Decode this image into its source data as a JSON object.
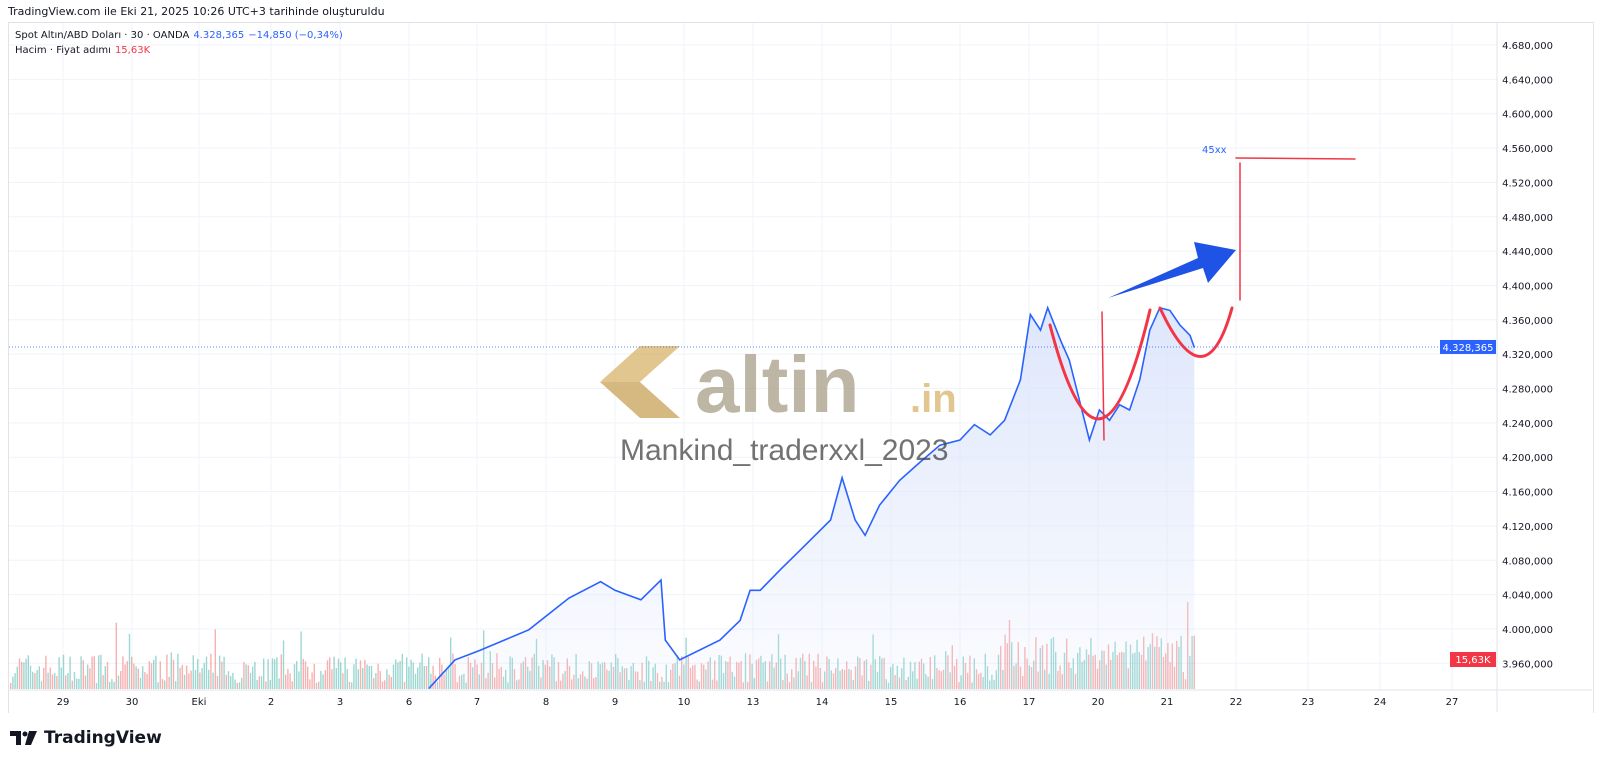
{
  "caption": "TradingView.com ile Eki 21, 2025 10:26 UTC+3 tarihinde oluşturuldu",
  "legend": {
    "symbol": "Spot Altın/ABD Doları · 30 · OANDA",
    "price": "4.328,365",
    "change": "−14,850 (−0,34%)",
    "volume_label": "Hacim · Fiyat adımı",
    "volume_value": "15,63K"
  },
  "watermark": {
    "brand": "altin",
    "brand_suffix": ".in",
    "author": "Mankind_traderxxl_2023"
  },
  "footer": {
    "logo": "TradingView"
  },
  "colors": {
    "line": "#2962ff",
    "area": "#dbe4fb",
    "drawing": "#f23645",
    "arrow": "#1e53e5",
    "vol_up": "#26a69a",
    "vol_down": "#ef5350"
  },
  "chart_data": {
    "type": "area",
    "x_ticks": [
      "29",
      "30",
      "Eki",
      "2",
      "3",
      "6",
      "7",
      "8",
      "9",
      "10",
      "13",
      "14",
      "15",
      "16",
      "17",
      "20",
      "21",
      "22",
      "23",
      "24",
      "27"
    ],
    "y_ticks": [
      "3.960,000",
      "4.000,000",
      "4.040,000",
      "4.080,000",
      "4.120,000",
      "4.160,000",
      "4.200,000",
      "4.240,000",
      "4.280,000",
      "4.320,000",
      "4.360,000",
      "4.400,000",
      "4.440,000",
      "4.480,000",
      "4.520,000",
      "4.560,000",
      "4.600,000",
      "4.640,000",
      "4.680,000"
    ],
    "ylim": [
      3940,
      4700
    ],
    "last_price": 4328.365,
    "last_price_label": "4.328,365",
    "volume_label": "15,63K",
    "series": [
      {
        "x": [
          "6 07:00",
          "6 16:00",
          "7 01:00",
          "7 18:00",
          "8 08:00",
          "8 19:00",
          "9 00:00",
          "9 09:00",
          "9 16:00",
          "9 17:30",
          "9 22:30",
          "10 12:30",
          "10 19:30",
          "10 23:00",
          "13 02:30",
          "13 09:30",
          "13 16:30",
          "14 03:00",
          "14 07:00",
          "14 11:30",
          "14 15:00",
          "14 20:00",
          "15 03:00",
          "15 10:00",
          "15 17:00",
          "16 00:00",
          "16 05:00",
          "16 10:30",
          "16 15:30",
          "16 21:00",
          "17 00:30",
          "17 04:00",
          "17 06:30",
          "17 11:00",
          "17 14:00",
          "17 17:30",
          "17 21:00",
          "20 00:30",
          "20 04:00",
          "20 07:30",
          "20 11:00",
          "20 14:30",
          "20 18:00",
          "20 21:30",
          "21 01:00",
          "21 04:30",
          "21 08:00",
          "21 09:30"
        ],
        "y": [
          3931,
          3964,
          3975,
          3999,
          4036,
          4055,
          4045,
          4034,
          4057,
          3987,
          3964,
          3987,
          4010,
          4045,
          4045,
          4069,
          4092,
          4127,
          4176,
          4127,
          4109,
          4144,
          4173,
          4194,
          4214,
          4220,
          4238,
          4226,
          4243,
          4290,
          4366,
          4348,
          4374,
          4336,
          4313,
          4267,
          4220,
          4255,
          4243,
          4261,
          4255,
          4290,
          4348,
          4374,
          4371,
          4354,
          4342,
          4328
        ]
      }
    ],
    "annotations": [
      {
        "text": "45xx",
        "price": 4550
      }
    ]
  }
}
